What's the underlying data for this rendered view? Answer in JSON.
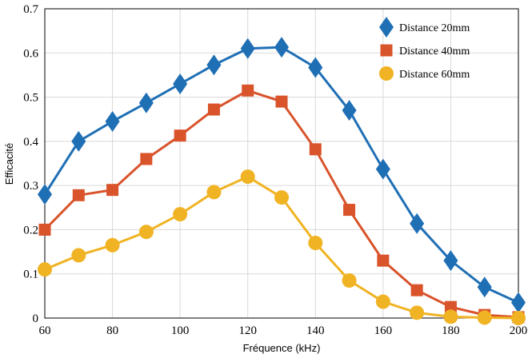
{
  "chart_data": {
    "type": "line",
    "title": "",
    "xlabel": "Fréquence (kHz)",
    "ylabel": "Efficacité",
    "xlim": [
      60,
      200
    ],
    "ylim": [
      0,
      0.7
    ],
    "x_ticks": [
      60,
      80,
      100,
      120,
      140,
      160,
      180,
      200
    ],
    "y_ticks": [
      0,
      0.1,
      0.2,
      0.3,
      0.4,
      0.5,
      0.6,
      0.7
    ],
    "x_tick_labels": [
      "60",
      "80",
      "100",
      "120",
      "140",
      "160",
      "180",
      "200"
    ],
    "y_tick_labels": [
      "0",
      "0.1",
      "0.2",
      "0.3",
      "0.4",
      "0.5",
      "0.6",
      "0.7"
    ],
    "grid": true,
    "legend_position": "top-right",
    "x": [
      60,
      70,
      80,
      90,
      100,
      110,
      120,
      130,
      140,
      150,
      160,
      170,
      180,
      190,
      200
    ],
    "series": [
      {
        "name": "Distance 20mm",
        "color": "#1f6fb5",
        "marker": "diamond",
        "values": [
          0.28,
          0.4,
          0.445,
          0.487,
          0.53,
          0.573,
          0.61,
          0.613,
          0.567,
          0.47,
          0.337,
          0.214,
          0.13,
          0.07,
          0.035
        ]
      },
      {
        "name": "Distance 40mm",
        "color": "#d9532b",
        "marker": "square",
        "values": [
          0.2,
          0.278,
          0.29,
          0.36,
          0.413,
          0.472,
          0.515,
          0.49,
          0.382,
          0.245,
          0.13,
          0.063,
          0.025,
          0.007,
          0.002
        ]
      },
      {
        "name": "Distance 60mm",
        "color": "#f0b323",
        "marker": "circle",
        "values": [
          0.11,
          0.142,
          0.165,
          0.195,
          0.235,
          0.285,
          0.32,
          0.273,
          0.17,
          0.085,
          0.037,
          0.012,
          0.003,
          0.001,
          0.0
        ]
      }
    ]
  }
}
